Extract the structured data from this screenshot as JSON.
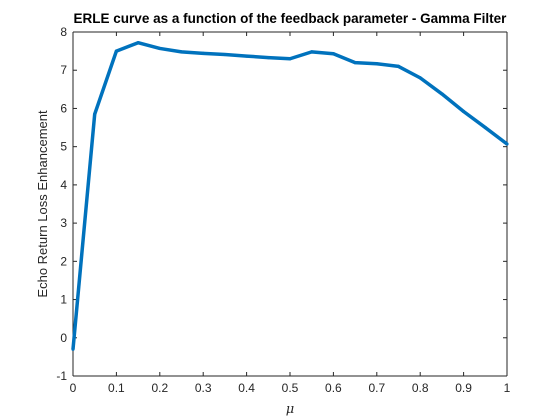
{
  "chart_data": {
    "type": "line",
    "title": "ERLE curve as a function of the feedback parameter - Gamma Filter",
    "xlabel": "μ",
    "ylabel": "Echo Return Loss Enhancement",
    "xlim": [
      0,
      1
    ],
    "ylim": [
      -1,
      8
    ],
    "x_ticks": [
      0,
      0.1,
      0.2,
      0.3,
      0.4,
      0.5,
      0.6,
      0.7,
      0.8,
      0.9,
      1
    ],
    "x_tick_labels": [
      "0",
      "0.1",
      "0.2",
      "0.3",
      "0.4",
      "0.5",
      "0.6",
      "0.7",
      "0.8",
      "0.9",
      "1"
    ],
    "y_ticks": [
      -1,
      0,
      1,
      2,
      3,
      4,
      5,
      6,
      7,
      8
    ],
    "y_tick_labels": [
      "-1",
      "0",
      "1",
      "2",
      "3",
      "4",
      "5",
      "6",
      "7",
      "8"
    ],
    "grid": false,
    "legend": "none",
    "series": [
      {
        "color": "#0072BD",
        "x": [
          0,
          0.05,
          0.1,
          0.15,
          0.2,
          0.25,
          0.3,
          0.35,
          0.4,
          0.45,
          0.5,
          0.55,
          0.6,
          0.65,
          0.7,
          0.75,
          0.8,
          0.85,
          0.9,
          0.95,
          1.0
        ],
        "y": [
          -0.3,
          5.85,
          7.5,
          7.72,
          7.57,
          7.48,
          7.44,
          7.41,
          7.37,
          7.33,
          7.3,
          7.48,
          7.43,
          7.2,
          7.17,
          7.1,
          6.8,
          6.38,
          5.92,
          5.5,
          5.07
        ]
      }
    ]
  }
}
